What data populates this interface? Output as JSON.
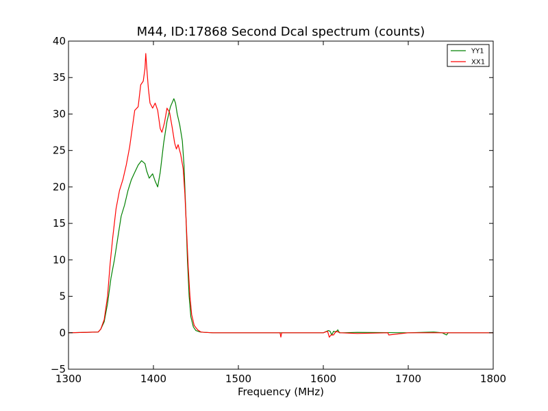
{
  "chart_data": {
    "type": "line",
    "title": "M44, ID:17868 Second Dcal spectrum (counts)",
    "xlabel": "Frequency (MHz)",
    "ylabel": "",
    "xlim": [
      1300,
      1800
    ],
    "ylim": [
      -5,
      40
    ],
    "xticks": [
      1300,
      1400,
      1500,
      1600,
      1700,
      1800
    ],
    "yticks": [
      -5,
      0,
      5,
      10,
      15,
      20,
      25,
      30,
      35,
      40
    ],
    "ytick_labels": [
      "−5",
      "0",
      "5",
      "10",
      "15",
      "20",
      "25",
      "30",
      "35",
      "40"
    ],
    "grid": false,
    "legend_position": "top-right",
    "series": [
      {
        "name": "YY1",
        "color": "#008000",
        "x": [
          1300,
          1335,
          1338,
          1342,
          1346,
          1350,
          1354,
          1358,
          1362,
          1366,
          1370,
          1374,
          1378,
          1382,
          1386,
          1390,
          1392,
          1395,
          1399,
          1402,
          1405,
          1408,
          1412,
          1416,
          1420,
          1424,
          1426,
          1428,
          1431,
          1434,
          1436,
          1438,
          1440,
          1442,
          1444,
          1447,
          1450,
          1455,
          1460,
          1470,
          1550,
          1600,
          1606,
          1608,
          1610,
          1612,
          1615,
          1617,
          1619,
          1622,
          1640,
          1700,
          1730,
          1740,
          1745,
          1747,
          1800
        ],
        "y": [
          0,
          0.1,
          0.5,
          1.5,
          4.0,
          7.5,
          10,
          13,
          16,
          17.5,
          19.5,
          21,
          22,
          23,
          23.6,
          23.2,
          22.2,
          21.2,
          21.8,
          20.8,
          20.0,
          22,
          26,
          29,
          31,
          32.1,
          31.5,
          30.0,
          28.5,
          26.3,
          23,
          17,
          10,
          5,
          2.2,
          0.8,
          0.3,
          0.1,
          0.05,
          0,
          0,
          0,
          0.3,
          0.2,
          -0.3,
          0.2,
          0.1,
          0.4,
          0,
          0,
          0.05,
          0,
          0.1,
          0,
          -0.3,
          0,
          0
        ]
      },
      {
        "name": "XX1",
        "color": "#ff0000",
        "x": [
          1300,
          1335,
          1338,
          1342,
          1346,
          1349,
          1352,
          1356,
          1360,
          1364,
          1368,
          1372,
          1375,
          1378,
          1382,
          1385,
          1388,
          1390,
          1391,
          1392,
          1394,
          1396,
          1399,
          1402,
          1405,
          1408,
          1410,
          1413,
          1416,
          1419,
          1422,
          1425,
          1427,
          1429,
          1432,
          1435,
          1437,
          1439,
          1441,
          1443,
          1445,
          1448,
          1452,
          1456,
          1460,
          1470,
          1549,
          1550,
          1551,
          1600,
          1605,
          1607,
          1609,
          1612,
          1615,
          1620,
          1640,
          1676,
          1677,
          1700,
          1800
        ],
        "y": [
          0,
          0.1,
          0.5,
          1.8,
          5.0,
          9.5,
          13,
          17,
          19.5,
          21,
          23,
          25.5,
          28,
          30.5,
          31,
          34,
          34.5,
          36.2,
          38.3,
          36.5,
          33.5,
          31.5,
          30.8,
          31.5,
          30.5,
          28.0,
          27.5,
          28.8,
          30.8,
          30.2,
          28.2,
          26.0,
          25.2,
          25.8,
          24.5,
          22.5,
          19,
          14,
          9,
          5,
          2.5,
          1.0,
          0.4,
          0.1,
          0.05,
          0,
          0,
          -0.6,
          0,
          0,
          0.2,
          -0.6,
          -0.3,
          -0.3,
          0.2,
          0,
          -0.1,
          0,
          -0.3,
          0,
          0
        ]
      }
    ]
  }
}
